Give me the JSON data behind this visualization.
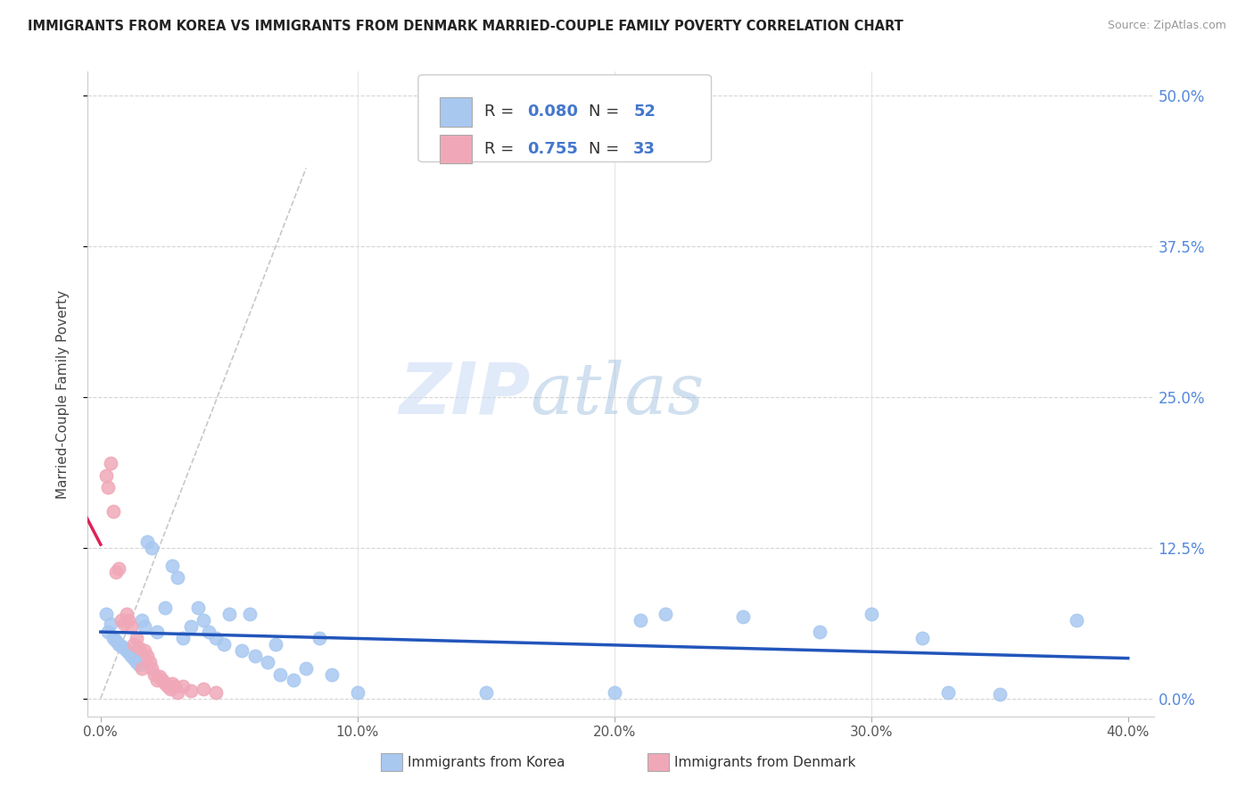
{
  "title": "IMMIGRANTS FROM KOREA VS IMMIGRANTS FROM DENMARK MARRIED-COUPLE FAMILY POVERTY CORRELATION CHART",
  "source": "Source: ZipAtlas.com",
  "ylabel": "Married-Couple Family Poverty",
  "watermark_zip": "ZIP",
  "watermark_atlas": "atlas",
  "legend_korea": "Immigrants from Korea",
  "legend_denmark": "Immigrants from Denmark",
  "korea_R": "0.080",
  "korea_N": "52",
  "denmark_R": "0.755",
  "denmark_N": "33",
  "korea_color": "#a8c8f0",
  "denmark_color": "#f0a8b8",
  "korea_line_color": "#2255bb",
  "denmark_line_color": "#dd2255",
  "diag_color": "#c8c8c8",
  "korea_scatter": [
    [
      0.2,
      7.0
    ],
    [
      0.3,
      5.5
    ],
    [
      0.4,
      6.2
    ],
    [
      0.5,
      5.0
    ],
    [
      0.6,
      4.8
    ],
    [
      0.7,
      4.5
    ],
    [
      0.8,
      4.3
    ],
    [
      0.9,
      4.2
    ],
    [
      1.0,
      4.0
    ],
    [
      1.1,
      3.8
    ],
    [
      1.2,
      3.5
    ],
    [
      1.3,
      3.3
    ],
    [
      1.4,
      3.0
    ],
    [
      1.5,
      2.8
    ],
    [
      1.6,
      6.5
    ],
    [
      1.7,
      6.0
    ],
    [
      1.8,
      13.0
    ],
    [
      2.0,
      12.5
    ],
    [
      2.2,
      5.5
    ],
    [
      2.5,
      7.5
    ],
    [
      2.8,
      11.0
    ],
    [
      3.0,
      10.0
    ],
    [
      3.2,
      5.0
    ],
    [
      3.5,
      6.0
    ],
    [
      3.8,
      7.5
    ],
    [
      4.0,
      6.5
    ],
    [
      4.2,
      5.5
    ],
    [
      4.5,
      5.0
    ],
    [
      4.8,
      4.5
    ],
    [
      5.0,
      7.0
    ],
    [
      5.5,
      4.0
    ],
    [
      5.8,
      7.0
    ],
    [
      6.0,
      3.5
    ],
    [
      6.5,
      3.0
    ],
    [
      6.8,
      4.5
    ],
    [
      7.0,
      2.0
    ],
    [
      7.5,
      1.5
    ],
    [
      8.0,
      2.5
    ],
    [
      8.5,
      5.0
    ],
    [
      9.0,
      2.0
    ],
    [
      10.0,
      0.5
    ],
    [
      15.0,
      0.5
    ],
    [
      20.0,
      0.5
    ],
    [
      21.0,
      6.5
    ],
    [
      22.0,
      7.0
    ],
    [
      25.0,
      6.8
    ],
    [
      28.0,
      5.5
    ],
    [
      30.0,
      7.0
    ],
    [
      32.0,
      5.0
    ],
    [
      33.0,
      0.5
    ],
    [
      35.0,
      0.3
    ],
    [
      38.0,
      6.5
    ]
  ],
  "denmark_scatter": [
    [
      0.2,
      18.5
    ],
    [
      0.3,
      17.5
    ],
    [
      0.4,
      19.5
    ],
    [
      0.5,
      15.5
    ],
    [
      0.6,
      10.5
    ],
    [
      0.7,
      10.8
    ],
    [
      0.8,
      6.5
    ],
    [
      0.9,
      6.2
    ],
    [
      1.0,
      7.0
    ],
    [
      1.1,
      6.5
    ],
    [
      1.2,
      6.0
    ],
    [
      1.3,
      4.5
    ],
    [
      1.4,
      5.0
    ],
    [
      1.5,
      4.2
    ],
    [
      1.6,
      2.5
    ],
    [
      1.7,
      4.0
    ],
    [
      1.8,
      3.5
    ],
    [
      1.9,
      3.0
    ],
    [
      2.0,
      2.5
    ],
    [
      2.1,
      2.0
    ],
    [
      2.2,
      1.5
    ],
    [
      2.3,
      1.8
    ],
    [
      2.4,
      1.5
    ],
    [
      2.5,
      1.2
    ],
    [
      2.6,
      1.0
    ],
    [
      2.7,
      0.8
    ],
    [
      2.8,
      1.2
    ],
    [
      2.9,
      1.0
    ],
    [
      3.0,
      0.5
    ],
    [
      3.2,
      1.0
    ],
    [
      3.5,
      0.6
    ],
    [
      4.0,
      0.8
    ],
    [
      4.5,
      0.5
    ]
  ],
  "xlim": [
    -0.5,
    41.0
  ],
  "ylim": [
    -1.5,
    52.0
  ],
  "xtick_vals": [
    0.0,
    10.0,
    20.0,
    30.0,
    40.0
  ],
  "xtick_labels": [
    "0.0%",
    "10.0%",
    "20.0%",
    "30.0%",
    "40.0%"
  ],
  "ytick_vals": [
    0.0,
    12.5,
    25.0,
    37.5,
    50.0
  ],
  "ytick_labels": [
    "0.0%",
    "12.5%",
    "25.0%",
    "37.5%",
    "50.0%"
  ]
}
